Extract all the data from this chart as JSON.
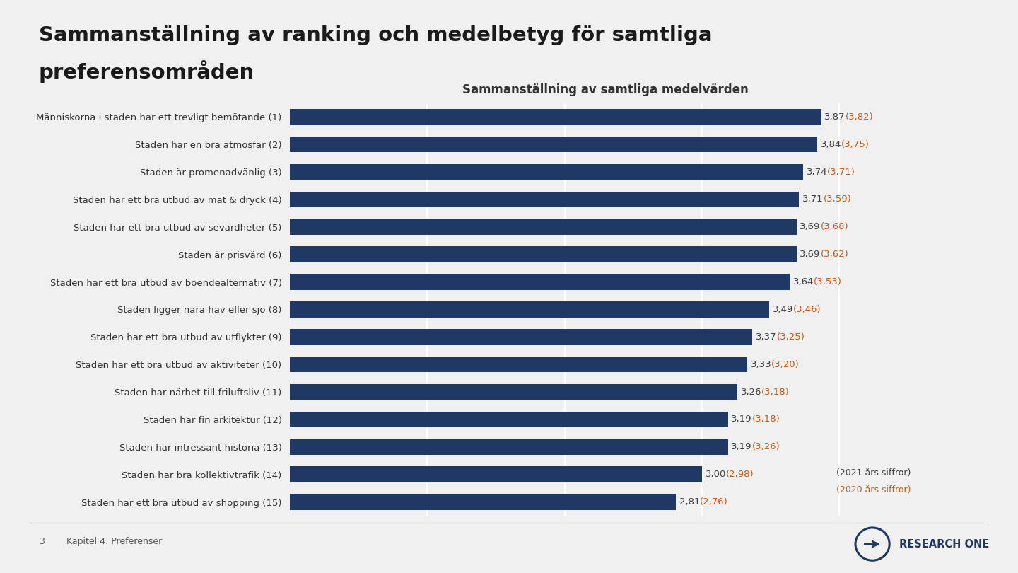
{
  "title_line1": "Sammanställning av ranking och medelbetyg för samtliga",
  "title_line2": "preferensområden",
  "chart_title": "Sammanställning av samtliga medelvärden",
  "categories": [
    "Människorna i staden har ett trevligt bemötande (1)",
    "Staden har en bra atmosfär (2)",
    "Staden är promenadvänlig (3)",
    "Staden har ett bra utbud av mat & dryck (4)",
    "Staden har ett bra utbud av sevärdheter (5)",
    "Staden är prisvärd (6)",
    "Staden har ett bra utbud av boendealternativ (7)",
    "Staden ligger nära hav eller sjö (8)",
    "Staden har ett bra utbud av utflykter (9)",
    "Staden har ett bra utbud av aktiviteter (10)",
    "Staden har närhet till friluftsliv (11)",
    "Staden har fin arkitektur (12)",
    "Staden har intressant historia (13)",
    "Staden har bra kollektivtrafik (14)",
    "Staden har ett bra utbud av shopping (15)"
  ],
  "values_2021": [
    3.87,
    3.84,
    3.74,
    3.71,
    3.69,
    3.69,
    3.64,
    3.49,
    3.37,
    3.33,
    3.26,
    3.19,
    3.19,
    3.0,
    2.81
  ],
  "values_2020": [
    3.82,
    3.75,
    3.71,
    3.59,
    3.68,
    3.62,
    3.53,
    3.46,
    3.25,
    3.2,
    3.18,
    3.18,
    3.26,
    2.98,
    2.76
  ],
  "bar_color": "#1F3864",
  "value_2021_color": "#404040",
  "value_2020_color": "#C55A11",
  "bg_color": "#F0F0F0",
  "title_fontsize": 21,
  "chart_title_fontsize": 12,
  "label_fontsize": 9.5,
  "value_fontsize": 9.5,
  "footer_number": "3",
  "footer_text": "Kapitel 4: Preferenser",
  "legend_2021": "(2021 års siffror)",
  "legend_2020": "(2020 års siffror)",
  "xlim": [
    0,
    4.6
  ]
}
